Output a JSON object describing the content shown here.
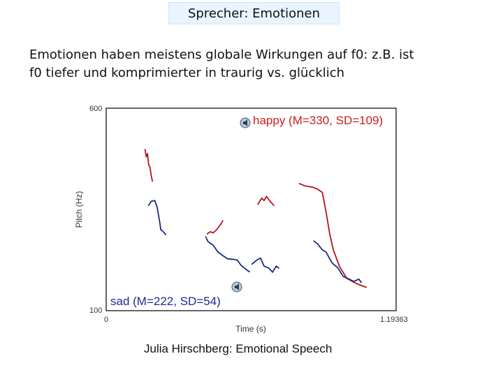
{
  "slide": {
    "title": "Sprecher: Emotionen",
    "body_line1": "Emotionen haben meistens globale Wirkungen auf f0: z.B. ist",
    "body_line2": "f0 tiefer und komprimierter in traurig vs. glücklich",
    "caption": "Julia Hirschberg: Emotional Speech"
  },
  "chart_data": {
    "type": "line",
    "ylabel": "Pitch (Hz)",
    "xlabel": "Time (s)",
    "ylim": [
      100,
      600
    ],
    "xlim": [
      0,
      1.19363
    ],
    "yticks": [
      "600",
      "100"
    ],
    "xticks": [
      "0",
      "1.19363"
    ],
    "grid": false,
    "annotations": [
      {
        "text": "happy (M=330, SD=109)",
        "color": "#c8201e"
      },
      {
        "text": "sad (M=222, SD=54)",
        "color": "#1e2a8f"
      }
    ],
    "series": [
      {
        "name": "happy",
        "color": "#b4141a",
        "segments": [
          [
            [
              0.16,
              498
            ],
            [
              0.165,
              480
            ],
            [
              0.17,
              488
            ],
            [
              0.175,
              460
            ],
            [
              0.18,
              455
            ],
            [
              0.185,
              435
            ],
            [
              0.19,
              420
            ]
          ],
          [
            [
              0.416,
              290
            ],
            [
              0.43,
              295
            ],
            [
              0.44,
              292
            ],
            [
              0.455,
              300
            ],
            [
              0.47,
              312
            ],
            [
              0.48,
              322
            ]
          ],
          [
            [
              0.625,
              363
            ],
            [
              0.64,
              378
            ],
            [
              0.65,
              372
            ],
            [
              0.66,
              382
            ],
            [
              0.675,
              370
            ],
            [
              0.69,
              360
            ]
          ],
          [
            [
              0.795,
              414
            ],
            [
              0.82,
              408
            ],
            [
              0.85,
              405
            ],
            [
              0.87,
              400
            ],
            [
              0.89,
              392
            ],
            [
              0.905,
              345
            ],
            [
              0.92,
              290
            ],
            [
              0.935,
              250
            ],
            [
              0.96,
              210
            ],
            [
              0.99,
              180
            ],
            [
              1.02,
              170
            ],
            [
              1.05,
              162
            ],
            [
              1.07,
              158
            ]
          ]
        ]
      },
      {
        "name": "sad",
        "color": "#1f2a7d",
        "segments": [
          [
            [
              0.175,
              360
            ],
            [
              0.185,
              370
            ],
            [
              0.2,
              372
            ],
            [
              0.21,
              355
            ],
            [
              0.22,
              320
            ],
            [
              0.225,
              300
            ],
            [
              0.235,
              295
            ],
            [
              0.245,
              288
            ]
          ],
          [
            [
              0.41,
              282
            ],
            [
              0.42,
              270
            ],
            [
              0.44,
              262
            ],
            [
              0.46,
              245
            ],
            [
              0.48,
              236
            ],
            [
              0.5,
              228
            ],
            [
              0.52,
              227
            ],
            [
              0.54,
              225
            ],
            [
              0.555,
              212
            ],
            [
              0.57,
              205
            ],
            [
              0.58,
              200
            ],
            [
              0.59,
              196
            ]
          ],
          [
            [
              0.6,
              215
            ],
            [
              0.62,
              225
            ],
            [
              0.635,
              230
            ],
            [
              0.65,
              210
            ],
            [
              0.67,
              205
            ],
            [
              0.685,
              195
            ],
            [
              0.7,
              210
            ],
            [
              0.71,
              205
            ]
          ],
          [
            [
              0.855,
              272
            ],
            [
              0.87,
              265
            ],
            [
              0.89,
              250
            ],
            [
              0.905,
              245
            ],
            [
              0.93,
              218
            ],
            [
              0.955,
              205
            ],
            [
              0.975,
              185
            ],
            [
              1.0,
              178
            ],
            [
              1.02,
              172
            ],
            [
              1.04,
              178
            ],
            [
              1.05,
              170
            ]
          ]
        ]
      }
    ]
  }
}
